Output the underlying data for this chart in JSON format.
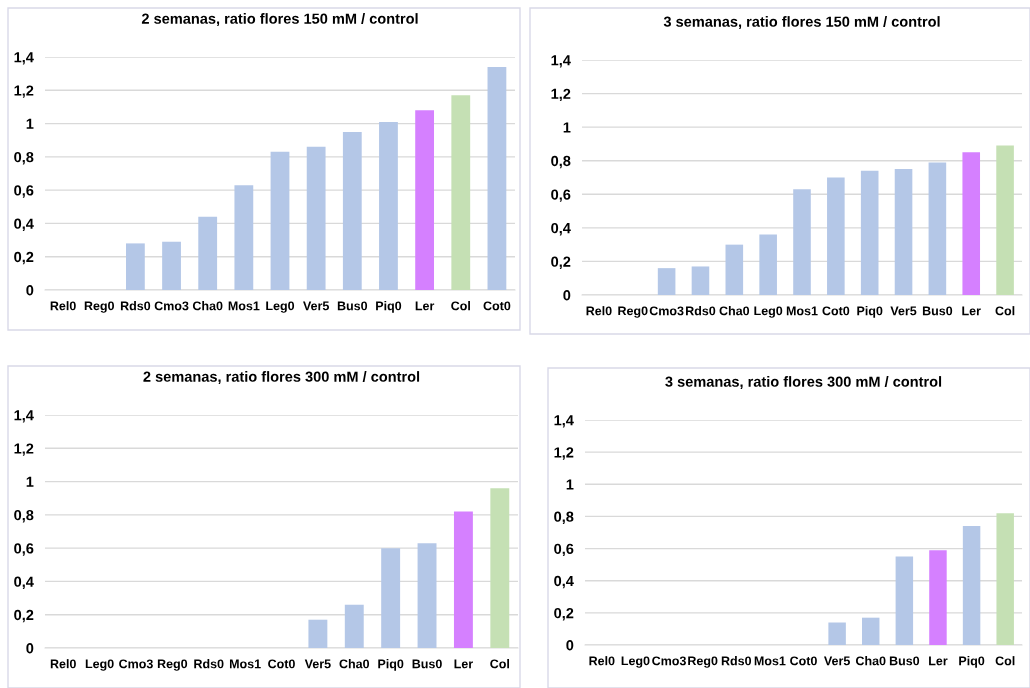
{
  "chart_data": [
    {
      "type": "bar",
      "title": "2 semanas, ratio flores 150 mM / control",
      "categories": [
        "Rel0",
        "Reg0",
        "Rds0",
        "Cmo3",
        "Cha0",
        "Mos1",
        "Leg0",
        "Ver5",
        "Bus0",
        "Piq0",
        "Ler",
        "Col",
        "Cot0"
      ],
      "values": [
        0,
        0,
        0.28,
        0.29,
        0.44,
        0.63,
        0.83,
        0.86,
        0.95,
        1.01,
        1.08,
        1.17,
        1.34
      ],
      "colors": [
        "#b4c7e7",
        "#b4c7e7",
        "#b4c7e7",
        "#b4c7e7",
        "#b4c7e7",
        "#b4c7e7",
        "#b4c7e7",
        "#b4c7e7",
        "#b4c7e7",
        "#b4c7e7",
        "#d580ff",
        "#c5e0b4",
        "#b4c7e7"
      ],
      "ylim": [
        0,
        1.4
      ],
      "yticks": [
        0,
        {
          "value": 0.2,
          "label": "0,2"
        },
        {
          "value": 0.4,
          "label": "0,4"
        },
        {
          "value": 0.6,
          "label": "0,6"
        },
        {
          "value": 0.8,
          "label": "0,8"
        },
        1,
        {
          "value": 1.2,
          "label": "1,2"
        },
        {
          "value": 1.4,
          "label": "1,4"
        }
      ],
      "grid": "y"
    },
    {
      "type": "bar",
      "title": "3 semanas, ratio flores 150 mM / control",
      "categories": [
        "Rel0",
        "Reg0",
        "Cmo3",
        "Rds0",
        "Cha0",
        "Leg0",
        "Mos1",
        "Cot0",
        "Piq0",
        "Ver5",
        "Bus0",
        "Ler",
        "Col"
      ],
      "values": [
        0,
        0,
        0.16,
        0.17,
        0.3,
        0.36,
        0.63,
        0.7,
        0.74,
        0.75,
        0.79,
        0.85,
        0.89
      ],
      "colors": [
        "#b4c7e7",
        "#b4c7e7",
        "#b4c7e7",
        "#b4c7e7",
        "#b4c7e7",
        "#b4c7e7",
        "#b4c7e7",
        "#b4c7e7",
        "#b4c7e7",
        "#b4c7e7",
        "#b4c7e7",
        "#d580ff",
        "#c5e0b4"
      ],
      "ylim": [
        0,
        1.4
      ],
      "yticks": [
        0,
        {
          "value": 0.2,
          "label": "0,2"
        },
        {
          "value": 0.4,
          "label": "0,4"
        },
        {
          "value": 0.6,
          "label": "0,6"
        },
        {
          "value": 0.8,
          "label": "0,8"
        },
        1,
        {
          "value": 1.2,
          "label": "1,2"
        },
        {
          "value": 1.4,
          "label": "1,4"
        }
      ],
      "grid": "y"
    },
    {
      "type": "bar",
      "title": "2 semanas, ratio flores 300 mM / control",
      "categories": [
        "Rel0",
        "Leg0",
        "Cmo3",
        "Reg0",
        "Rds0",
        "Mos1",
        "Cot0",
        "Ver5",
        "Cha0",
        "Piq0",
        "Bus0",
        "Ler",
        "Col"
      ],
      "values": [
        0,
        0,
        0,
        0,
        0,
        0,
        0,
        0.17,
        0.26,
        0.6,
        0.63,
        0.82,
        0.96
      ],
      "colors": [
        "#b4c7e7",
        "#b4c7e7",
        "#b4c7e7",
        "#b4c7e7",
        "#b4c7e7",
        "#b4c7e7",
        "#b4c7e7",
        "#b4c7e7",
        "#b4c7e7",
        "#b4c7e7",
        "#b4c7e7",
        "#d580ff",
        "#c5e0b4"
      ],
      "ylim": [
        0,
        1.4
      ],
      "yticks": [
        0,
        {
          "value": 0.2,
          "label": "0,2"
        },
        {
          "value": 0.4,
          "label": "0,4"
        },
        {
          "value": 0.6,
          "label": "0,6"
        },
        {
          "value": 0.8,
          "label": "0,8"
        },
        1,
        {
          "value": 1.2,
          "label": "1,2"
        },
        {
          "value": 1.4,
          "label": "1,4"
        }
      ],
      "grid": "y"
    },
    {
      "type": "bar",
      "title": "3 semanas, ratio flores 300 mM / control",
      "categories": [
        "Rel0",
        "Leg0",
        "Cmo3",
        "Reg0",
        "Rds0",
        "Mos1",
        "Cot0",
        "Ver5",
        "Cha0",
        "Bus0",
        "Ler",
        "Piq0",
        "Col"
      ],
      "values": [
        0,
        0,
        0,
        0,
        0,
        0,
        0,
        0.14,
        0.17,
        0.55,
        0.59,
        0.74,
        0.82
      ],
      "colors": [
        "#b4c7e7",
        "#b4c7e7",
        "#b4c7e7",
        "#b4c7e7",
        "#b4c7e7",
        "#b4c7e7",
        "#b4c7e7",
        "#b4c7e7",
        "#b4c7e7",
        "#b4c7e7",
        "#d580ff",
        "#b4c7e7",
        "#c5e0b4"
      ],
      "ylim": [
        0,
        1.4
      ],
      "yticks": [
        0,
        {
          "value": 0.2,
          "label": "0,2"
        },
        {
          "value": 0.4,
          "label": "0,4"
        },
        {
          "value": 0.6,
          "label": "0,6"
        },
        {
          "value": 0.8,
          "label": "0,8"
        },
        1,
        {
          "value": 1.2,
          "label": "1,2"
        },
        {
          "value": 1.4,
          "label": "1,4"
        }
      ],
      "grid": "y"
    }
  ]
}
